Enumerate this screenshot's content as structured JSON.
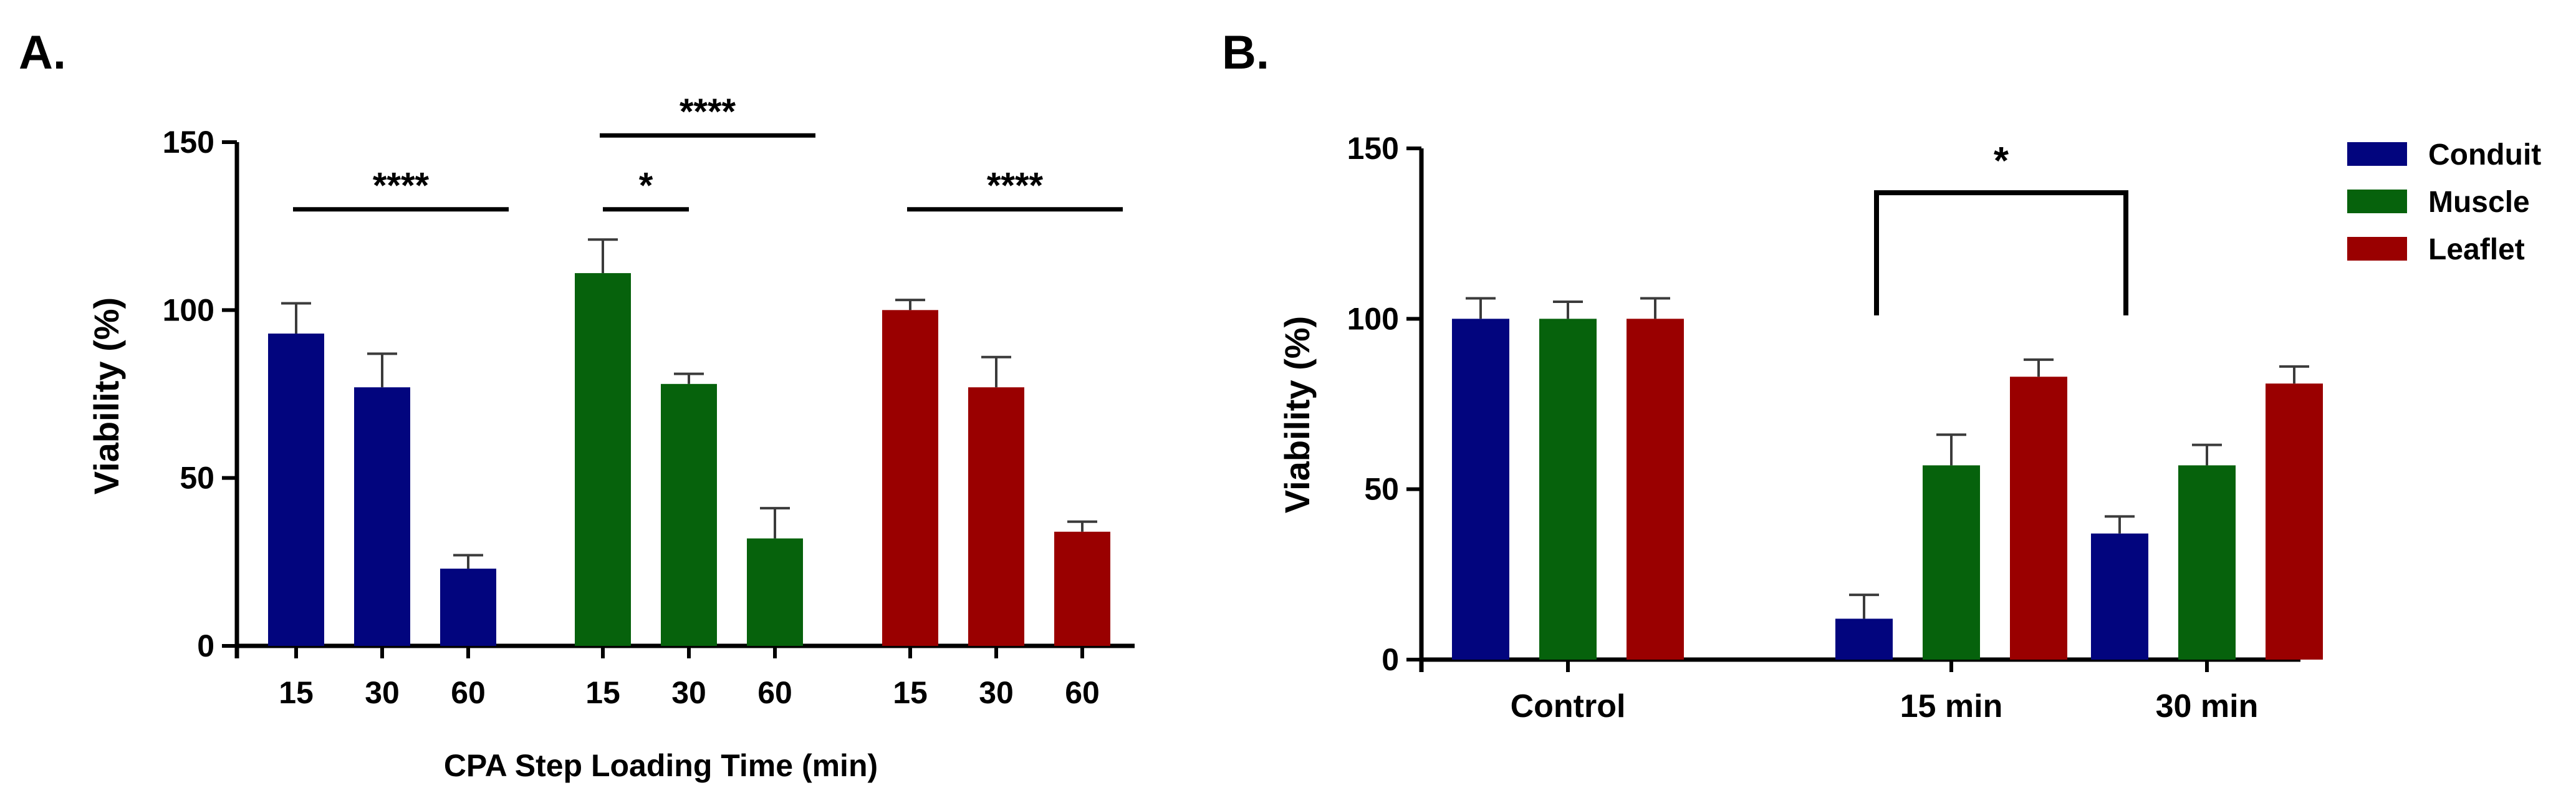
{
  "panels": {
    "a_label": "A.",
    "b_label": "B."
  },
  "colors": {
    "conduit": "#02057e",
    "muscle": "#06620c",
    "leaflet": "#9a0000",
    "axis": "#000000"
  },
  "chart_data": [
    {
      "type": "bar",
      "panel": "A.",
      "xlabel": "CPA Step Loading Time  (min)",
      "ylabel": "Viability  (%)",
      "ylim": [
        0,
        150
      ],
      "yticks": [
        0,
        50,
        100,
        150
      ],
      "legend": "none",
      "groups": [
        {
          "color_key": "conduit",
          "bars": [
            {
              "x": "15",
              "value": 93,
              "error": 9
            },
            {
              "x": "30",
              "value": 77,
              "error": 10
            },
            {
              "x": "60",
              "value": 23,
              "error": 4
            }
          ]
        },
        {
          "color_key": "muscle",
          "bars": [
            {
              "x": "15",
              "value": 111,
              "error": 10
            },
            {
              "x": "30",
              "value": 78,
              "error": 3
            },
            {
              "x": "60",
              "value": 32,
              "error": 9
            }
          ]
        },
        {
          "color_key": "leaflet",
          "bars": [
            {
              "x": "15",
              "value": 100,
              "error": 3
            },
            {
              "x": "30",
              "value": 77,
              "error": 9
            },
            {
              "x": "60",
              "value": 34,
              "error": 3
            }
          ]
        }
      ],
      "annotations": [
        {
          "text": "****",
          "from": [
            0,
            0
          ],
          "to": [
            0,
            2
          ],
          "level": 130
        },
        {
          "text": "****",
          "from": [
            1,
            0
          ],
          "to": [
            1,
            2
          ],
          "level": 152
        },
        {
          "text": "*",
          "from": [
            1,
            0
          ],
          "to": [
            1,
            1
          ],
          "level": 130
        },
        {
          "text": "****",
          "from": [
            2,
            0
          ],
          "to": [
            2,
            2
          ],
          "level": 130
        }
      ]
    },
    {
      "type": "bar",
      "panel": "B.",
      "xlabel": "",
      "ylabel": "Viability  (%)",
      "ylim": [
        0,
        150
      ],
      "yticks": [
        0,
        50,
        100,
        150
      ],
      "categories": [
        "Control",
        "15 min",
        "30 min"
      ],
      "legend": "top-right",
      "series": [
        {
          "name": "Conduit",
          "color_key": "conduit",
          "values": [
            100,
            12,
            37
          ],
          "errors": [
            6,
            7,
            5
          ]
        },
        {
          "name": "Muscle",
          "color_key": "muscle",
          "values": [
            100,
            57,
            57
          ],
          "errors": [
            5,
            9,
            6
          ]
        },
        {
          "name": "Leaflet",
          "color_key": "leaflet",
          "values": [
            100,
            83,
            81
          ],
          "errors": [
            6,
            5,
            5
          ]
        }
      ],
      "annotations": [
        {
          "text": "*",
          "from": "15 min",
          "to": "30 min",
          "level": 137,
          "drop_to": 101
        }
      ]
    }
  ]
}
